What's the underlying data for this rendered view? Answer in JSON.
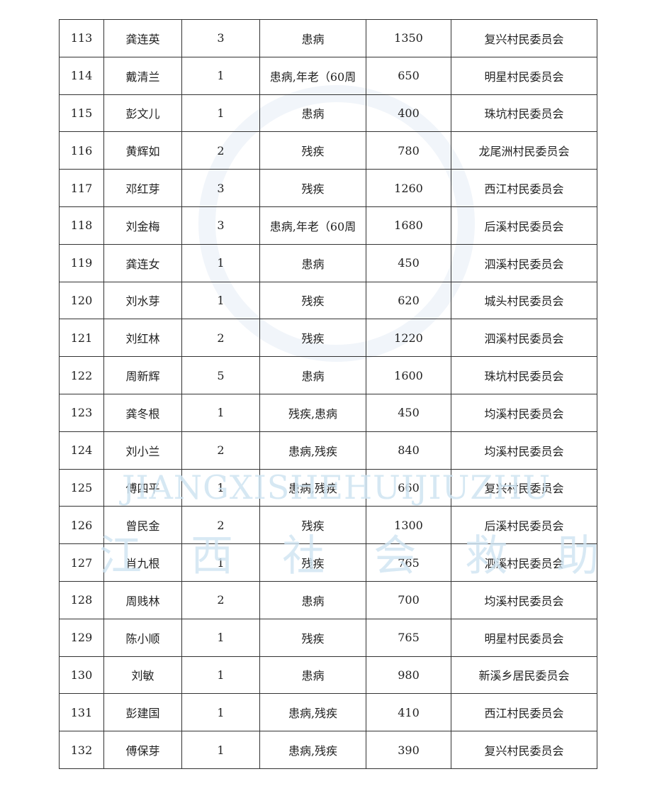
{
  "watermark": {
    "pinyin": "JIANGXISHEHUIJIUZHU",
    "chinese": "江 西 社 会 救 助"
  },
  "rows": [
    [
      "113",
      "龚连英",
      "3",
      "患病",
      "1350",
      "复兴村民委员会"
    ],
    [
      "114",
      "戴清兰",
      "1",
      "患病,年老（60周",
      "650",
      "明星村民委员会"
    ],
    [
      "115",
      "彭文儿",
      "1",
      "患病",
      "400",
      "珠坑村民委员会"
    ],
    [
      "116",
      "黄辉如",
      "2",
      "残疾",
      "780",
      "龙尾洲村民委员会"
    ],
    [
      "117",
      "邓红芽",
      "3",
      "残疾",
      "1260",
      "西江村民委员会"
    ],
    [
      "118",
      "刘金梅",
      "3",
      "患病,年老（60周",
      "1680",
      "后溪村民委员会"
    ],
    [
      "119",
      "龚连女",
      "1",
      "患病",
      "450",
      "泗溪村民委员会"
    ],
    [
      "120",
      "刘水芽",
      "1",
      "残疾",
      "620",
      "城头村民委员会"
    ],
    [
      "121",
      "刘红林",
      "2",
      "残疾",
      "1220",
      "泗溪村民委员会"
    ],
    [
      "122",
      "周新辉",
      "5",
      "患病",
      "1600",
      "珠坑村民委员会"
    ],
    [
      "123",
      "龚冬根",
      "1",
      "残疾,患病",
      "450",
      "均溪村民委员会"
    ],
    [
      "124",
      "刘小兰",
      "2",
      "患病,残疾",
      "840",
      "均溪村民委员会"
    ],
    [
      "125",
      "傅四平",
      "1",
      "患病,残疾",
      "660",
      "复兴村民委员会"
    ],
    [
      "126",
      "曾民金",
      "2",
      "残疾",
      "1300",
      "后溪村民委员会"
    ],
    [
      "127",
      "肖九根",
      "1",
      "残疾",
      "765",
      "泗溪村民委员会"
    ],
    [
      "128",
      "周贱林",
      "2",
      "患病",
      "700",
      "均溪村民委员会"
    ],
    [
      "129",
      "陈小顺",
      "1",
      "残疾",
      "765",
      "明星村民委员会"
    ],
    [
      "130",
      "刘敏",
      "1",
      "患病",
      "980",
      "新溪乡居民委员会"
    ],
    [
      "131",
      "彭建国",
      "1",
      "患病,残疾",
      "410",
      "西江村民委员会"
    ],
    [
      "132",
      "傅保芽",
      "1",
      "患病,残疾",
      "390",
      "复兴村民委员会"
    ]
  ]
}
